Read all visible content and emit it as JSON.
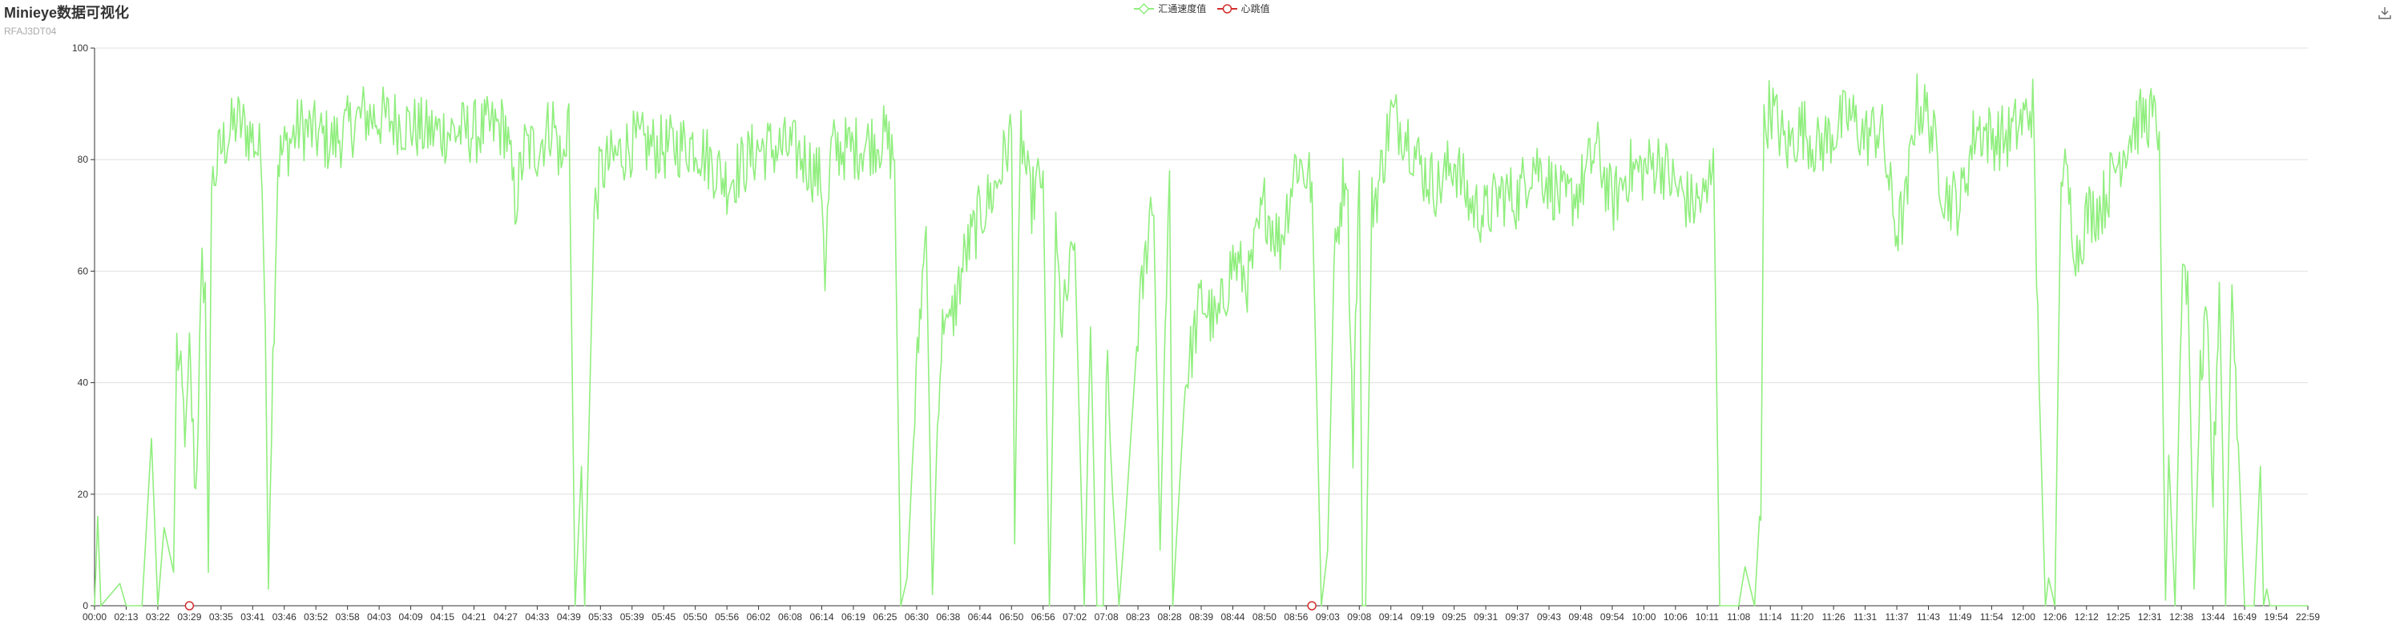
{
  "title": "Minieye数据可视化",
  "subtitle": "RFAJ3DT04",
  "toolbox": {
    "save_icon": "download-icon"
  },
  "colors": {
    "series1": "#90ee7e",
    "series2": "#d32f2f",
    "axis": "#333333",
    "grid": "#e0e0e0",
    "title": "#333333",
    "subtitle": "#aaaaaa"
  },
  "chart_data": {
    "type": "line",
    "title": "Minieye数据可视化",
    "subtitle": "RFAJ3DT04",
    "xlabel": "",
    "ylabel": "",
    "ylim": [
      0,
      100
    ],
    "yticks": [
      0,
      20,
      40,
      60,
      80,
      100
    ],
    "grid": true,
    "legend_position": "top-center",
    "categories": [
      "00:00",
      "02:13",
      "03:22",
      "03:29",
      "03:35",
      "03:41",
      "03:46",
      "03:52",
      "03:58",
      "04:03",
      "04:09",
      "04:15",
      "04:21",
      "04:27",
      "04:33",
      "04:39",
      "05:33",
      "05:39",
      "05:45",
      "05:50",
      "05:56",
      "06:02",
      "06:08",
      "06:14",
      "06:19",
      "06:25",
      "06:30",
      "06:38",
      "06:44",
      "06:50",
      "06:56",
      "07:02",
      "07:08",
      "08:23",
      "08:28",
      "08:39",
      "08:44",
      "08:50",
      "08:56",
      "09:03",
      "09:08",
      "09:14",
      "09:19",
      "09:25",
      "09:31",
      "09:37",
      "09:43",
      "09:48",
      "09:54",
      "10:00",
      "10:06",
      "10:11",
      "11:08",
      "11:14",
      "11:20",
      "11:26",
      "11:31",
      "11:37",
      "11:43",
      "11:49",
      "11:54",
      "12:00",
      "12:06",
      "12:12",
      "12:25",
      "12:31",
      "12:38",
      "13:44",
      "16:49",
      "19:54",
      "22:59"
    ],
    "series": [
      {
        "name": "汇通速度值",
        "type": "line",
        "keypoints": [
          [
            0,
            0
          ],
          [
            0.1,
            16
          ],
          [
            0.2,
            0
          ],
          [
            0.8,
            4
          ],
          [
            1.0,
            0
          ],
          [
            1.5,
            0
          ],
          [
            1.8,
            30
          ],
          [
            2.0,
            0
          ],
          [
            2.2,
            14
          ],
          [
            2.5,
            6
          ],
          [
            2.6,
            47
          ],
          [
            2.9,
            30
          ],
          [
            3.0,
            45
          ],
          [
            3.2,
            20
          ],
          [
            3.4,
            60
          ],
          [
            3.5,
            58
          ],
          [
            3.6,
            6
          ],
          [
            3.7,
            75
          ],
          [
            4.0,
            82
          ],
          [
            4.5,
            87
          ],
          [
            5.0,
            84
          ],
          [
            5.3,
            80
          ],
          [
            5.4,
            50
          ],
          [
            5.5,
            3
          ],
          [
            5.6,
            35
          ],
          [
            5.8,
            80
          ],
          [
            6.5,
            86
          ],
          [
            7.5,
            83
          ],
          [
            8.5,
            88
          ],
          [
            9.5,
            87
          ],
          [
            10.5,
            85
          ],
          [
            12.0,
            85
          ],
          [
            13.0,
            86
          ],
          [
            13.3,
            72
          ],
          [
            13.6,
            82
          ],
          [
            14.0,
            82
          ],
          [
            14.5,
            87
          ],
          [
            14.8,
            78
          ],
          [
            15.0,
            90
          ],
          [
            15.2,
            0
          ],
          [
            15.4,
            25
          ],
          [
            15.5,
            0
          ],
          [
            15.8,
            70
          ],
          [
            16.0,
            78
          ],
          [
            17.0,
            83
          ],
          [
            18.0,
            82
          ],
          [
            19.0,
            83
          ],
          [
            20.0,
            76
          ],
          [
            21.0,
            82
          ],
          [
            22.0,
            82
          ],
          [
            22.5,
            80
          ],
          [
            23.0,
            76
          ],
          [
            23.1,
            60
          ],
          [
            23.3,
            82
          ],
          [
            24.0,
            82
          ],
          [
            25.0,
            84
          ],
          [
            25.3,
            80
          ],
          [
            25.5,
            0
          ],
          [
            25.7,
            5
          ],
          [
            25.9,
            30
          ],
          [
            26.1,
            52
          ],
          [
            26.3,
            68
          ],
          [
            26.5,
            2
          ],
          [
            26.7,
            40
          ],
          [
            26.9,
            55
          ],
          [
            27.0,
            48
          ],
          [
            27.5,
            62
          ],
          [
            28.0,
            70
          ],
          [
            28.5,
            75
          ],
          [
            29.0,
            85
          ],
          [
            29.1,
            17
          ],
          [
            29.3,
            85
          ],
          [
            29.6,
            72
          ],
          [
            30.0,
            78
          ],
          [
            30.2,
            0
          ],
          [
            30.4,
            65
          ],
          [
            30.6,
            50
          ],
          [
            31.0,
            65
          ],
          [
            31.3,
            0
          ],
          [
            31.5,
            50
          ],
          [
            31.7,
            0
          ],
          [
            31.9,
            0
          ],
          [
            32.0,
            45
          ],
          [
            32.2,
            20
          ],
          [
            32.4,
            0
          ],
          [
            32.6,
            15
          ],
          [
            33.0,
            50
          ],
          [
            33.2,
            60
          ],
          [
            33.4,
            72
          ],
          [
            33.5,
            70
          ],
          [
            33.7,
            10
          ],
          [
            33.9,
            60
          ],
          [
            34.0,
            78
          ],
          [
            34.1,
            0
          ],
          [
            34.5,
            40
          ],
          [
            35.0,
            55
          ],
          [
            35.5,
            50
          ],
          [
            36.0,
            62
          ],
          [
            36.5,
            58
          ],
          [
            37.0,
            72
          ],
          [
            37.5,
            65
          ],
          [
            38.0,
            80
          ],
          [
            38.5,
            76
          ],
          [
            38.8,
            0
          ],
          [
            39.0,
            10
          ],
          [
            39.2,
            60
          ],
          [
            39.4,
            72
          ],
          [
            39.6,
            80
          ],
          [
            39.8,
            30
          ],
          [
            40.0,
            78
          ],
          [
            40.1,
            0
          ],
          [
            40.2,
            0
          ],
          [
            40.4,
            72
          ],
          [
            40.6,
            75
          ],
          [
            41.0,
            88
          ],
          [
            41.5,
            85
          ],
          [
            42.0,
            78
          ],
          [
            42.5,
            75
          ],
          [
            43.0,
            80
          ],
          [
            43.5,
            72
          ],
          [
            44.0,
            70
          ],
          [
            44.5,
            74
          ],
          [
            45.0,
            73
          ],
          [
            45.5,
            80
          ],
          [
            46.0,
            76
          ],
          [
            46.5,
            72
          ],
          [
            47.0,
            75
          ],
          [
            47.5,
            82
          ],
          [
            48.0,
            72
          ],
          [
            48.5,
            78
          ],
          [
            49.0,
            78
          ],
          [
            49.5,
            80
          ],
          [
            50.0,
            75
          ],
          [
            50.5,
            72
          ],
          [
            51.0,
            73
          ],
          [
            51.2,
            82
          ],
          [
            51.4,
            0
          ],
          [
            51.6,
            0
          ],
          [
            52.0,
            0
          ],
          [
            52.2,
            7
          ],
          [
            52.5,
            0
          ],
          [
            52.7,
            20
          ],
          [
            52.8,
            85
          ],
          [
            53.0,
            90
          ],
          [
            53.5,
            82
          ],
          [
            54.0,
            86
          ],
          [
            54.5,
            82
          ],
          [
            55.0,
            85
          ],
          [
            55.5,
            88
          ],
          [
            56.0,
            84
          ],
          [
            56.5,
            86
          ],
          [
            56.8,
            74
          ],
          [
            57.0,
            67
          ],
          [
            57.3,
            72
          ],
          [
            57.6,
            90
          ],
          [
            58.0,
            88
          ],
          [
            58.5,
            74
          ],
          [
            59.0,
            72
          ],
          [
            59.5,
            86
          ],
          [
            60.0,
            84
          ],
          [
            60.5,
            84
          ],
          [
            61.0,
            87
          ],
          [
            61.3,
            90
          ],
          [
            61.5,
            40
          ],
          [
            61.7,
            0
          ],
          [
            61.8,
            5
          ],
          [
            62.0,
            0
          ],
          [
            62.2,
            80
          ],
          [
            62.4,
            75
          ],
          [
            62.7,
            63
          ],
          [
            63.0,
            70
          ],
          [
            63.5,
            72
          ],
          [
            64.0,
            80
          ],
          [
            64.5,
            86
          ],
          [
            65.0,
            88
          ],
          [
            65.3,
            85
          ],
          [
            65.5,
            1
          ],
          [
            65.6,
            27
          ],
          [
            65.8,
            0
          ],
          [
            66.0,
            55
          ],
          [
            66.2,
            60
          ],
          [
            66.4,
            3
          ],
          [
            66.6,
            40
          ],
          [
            66.8,
            50
          ],
          [
            67.0,
            20
          ],
          [
            67.2,
            58
          ],
          [
            67.4,
            0
          ],
          [
            67.6,
            58
          ],
          [
            67.8,
            29
          ],
          [
            68.0,
            0
          ],
          [
            68.3,
            0
          ],
          [
            68.5,
            25
          ],
          [
            68.6,
            0
          ],
          [
            68.7,
            3
          ],
          [
            68.8,
            0
          ],
          [
            70.0,
            0
          ]
        ]
      },
      {
        "name": "心跳值",
        "type": "scatter",
        "points": [
          [
            3.0,
            0
          ],
          [
            38.5,
            0
          ]
        ]
      }
    ]
  }
}
